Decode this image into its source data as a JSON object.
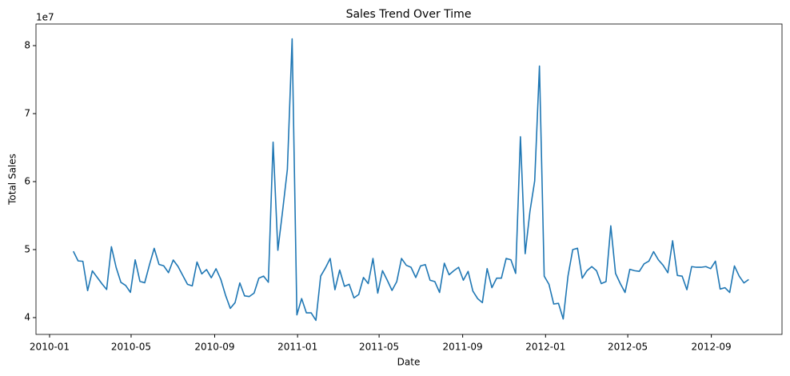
{
  "chart_data": {
    "type": "line",
    "title": "Sales Trend Over Time",
    "x_label": "Date",
    "y_label": "Total Sales",
    "y_offset_label": "1e7",
    "color": "#1f77b4",
    "x": [
      "2010-02-05",
      "2010-02-12",
      "2010-02-19",
      "2010-02-26",
      "2010-03-05",
      "2010-03-12",
      "2010-03-19",
      "2010-03-26",
      "2010-04-02",
      "2010-04-09",
      "2010-04-16",
      "2010-04-23",
      "2010-04-30",
      "2010-05-07",
      "2010-05-14",
      "2010-05-21",
      "2010-05-28",
      "2010-06-04",
      "2010-06-11",
      "2010-06-18",
      "2010-06-25",
      "2010-07-02",
      "2010-07-09",
      "2010-07-16",
      "2010-07-23",
      "2010-07-30",
      "2010-08-06",
      "2010-08-13",
      "2010-08-20",
      "2010-08-27",
      "2010-09-03",
      "2010-09-10",
      "2010-09-17",
      "2010-09-24",
      "2010-10-01",
      "2010-10-08",
      "2010-10-15",
      "2010-10-22",
      "2010-10-29",
      "2010-11-05",
      "2010-11-12",
      "2010-11-19",
      "2010-11-26",
      "2010-12-03",
      "2010-12-10",
      "2010-12-17",
      "2010-12-24",
      "2010-12-31",
      "2011-01-07",
      "2011-01-14",
      "2011-01-21",
      "2011-01-28",
      "2011-02-04",
      "2011-02-11",
      "2011-02-18",
      "2011-02-25",
      "2011-03-04",
      "2011-03-11",
      "2011-03-18",
      "2011-03-25",
      "2011-04-01",
      "2011-04-08",
      "2011-04-15",
      "2011-04-22",
      "2011-04-29",
      "2011-05-06",
      "2011-05-13",
      "2011-05-20",
      "2011-05-27",
      "2011-06-03",
      "2011-06-10",
      "2011-06-17",
      "2011-06-24",
      "2011-07-01",
      "2011-07-08",
      "2011-07-15",
      "2011-07-22",
      "2011-07-29",
      "2011-08-05",
      "2011-08-12",
      "2011-08-19",
      "2011-08-26",
      "2011-09-02",
      "2011-09-09",
      "2011-09-16",
      "2011-09-23",
      "2011-09-30",
      "2011-10-07",
      "2011-10-14",
      "2011-10-21",
      "2011-10-28",
      "2011-11-04",
      "2011-11-11",
      "2011-11-18",
      "2011-11-25",
      "2011-12-02",
      "2011-12-09",
      "2011-12-16",
      "2011-12-23",
      "2011-12-30",
      "2012-01-06",
      "2012-01-13",
      "2012-01-20",
      "2012-01-27",
      "2012-02-03",
      "2012-02-10",
      "2012-02-17",
      "2012-02-24",
      "2012-03-02",
      "2012-03-09",
      "2012-03-16",
      "2012-03-23",
      "2012-03-30",
      "2012-04-06",
      "2012-04-13",
      "2012-04-20",
      "2012-04-27",
      "2012-05-04",
      "2012-05-11",
      "2012-05-18",
      "2012-05-25",
      "2012-06-01",
      "2012-06-08",
      "2012-06-15",
      "2012-06-22",
      "2012-06-29",
      "2012-07-06",
      "2012-07-13",
      "2012-07-20",
      "2012-07-27",
      "2012-08-03",
      "2012-08-10",
      "2012-08-17",
      "2012-08-24",
      "2012-08-31",
      "2012-09-07",
      "2012-09-14",
      "2012-09-21",
      "2012-09-28",
      "2012-10-05",
      "2012-10-12",
      "2012-10-19",
      "2012-10-26"
    ],
    "values": [
      49750000,
      48340000,
      48280000,
      43970000,
      46870000,
      45930000,
      44990000,
      44130000,
      50420000,
      47370000,
      45180000,
      44730000,
      43710000,
      48500000,
      45330000,
      45120000,
      47760000,
      50190000,
      47830000,
      47620000,
      46610000,
      48470000,
      47530000,
      46210000,
      44900000,
      44660000,
      48170000,
      46430000,
      47070000,
      45860000,
      47190000,
      45630000,
      43290000,
      41360000,
      42200000,
      45100000,
      43200000,
      43100000,
      43600000,
      45800000,
      46100000,
      45200000,
      65800000,
      49900000,
      55700000,
      61800000,
      81000000,
      40400000,
      42800000,
      40700000,
      40700000,
      39600000,
      46100000,
      47300000,
      48700000,
      44100000,
      47000000,
      44600000,
      44900000,
      42900000,
      43400000,
      45900000,
      45000000,
      48700000,
      43600000,
      46900000,
      45500000,
      44000000,
      45300000,
      48700000,
      47700000,
      47400000,
      45900000,
      47600000,
      47800000,
      45500000,
      45300000,
      43700000,
      48000000,
      46300000,
      46900000,
      47400000,
      45500000,
      46800000,
      43900000,
      42800000,
      42200000,
      47200000,
      44400000,
      45800000,
      45800000,
      48700000,
      48500000,
      46500000,
      66600000,
      49400000,
      55600000,
      60100000,
      77000000,
      46100000,
      44900000,
      42000000,
      42100000,
      39800000,
      46100000,
      50000000,
      50200000,
      45800000,
      46900000,
      47500000,
      46900000,
      45000000,
      45300000,
      53500000,
      46500000,
      45000000,
      43700000,
      47100000,
      46900000,
      46800000,
      47900000,
      48300000,
      49700000,
      48500000,
      47700000,
      46600000,
      51300000,
      46200000,
      46100000,
      44100000,
      47500000,
      47400000,
      47400000,
      47500000,
      47200000,
      48300000,
      44200000,
      44400000,
      43700000,
      47600000,
      46100000,
      45100000,
      45600000
    ],
    "xlim": [
      "2009-12-12",
      "2012-12-14"
    ],
    "xticks": [
      "2010-01",
      "2010-05",
      "2010-09",
      "2011-01",
      "2011-05",
      "2011-09",
      "2012-01",
      "2012-05",
      "2012-09"
    ],
    "ylim": [
      37530000,
      83180000
    ],
    "yticks": [
      {
        "value": 40000000,
        "label": "4"
      },
      {
        "value": 50000000,
        "label": "5"
      },
      {
        "value": 60000000,
        "label": "6"
      },
      {
        "value": 70000000,
        "label": "7"
      },
      {
        "value": 80000000,
        "label": "8"
      }
    ]
  }
}
